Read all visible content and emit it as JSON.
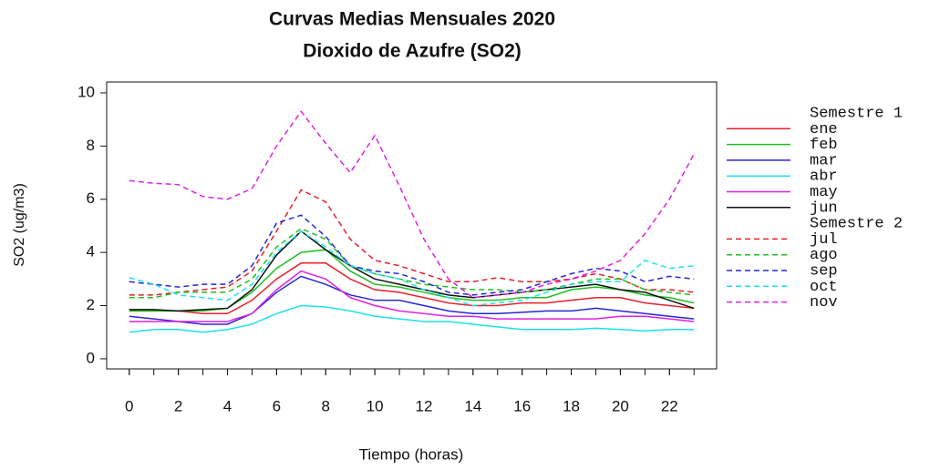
{
  "chart_data": {
    "type": "line",
    "title": "Curvas Medias Mensuales 2020",
    "subtitle": "Dioxido de Azufre (SO2)",
    "xlabel": "Tiempo (horas)",
    "ylabel": "SO2 (ug/m3)",
    "x": [
      0,
      1,
      2,
      3,
      4,
      5,
      6,
      7,
      8,
      9,
      10,
      11,
      12,
      13,
      14,
      15,
      16,
      17,
      18,
      19,
      20,
      21,
      22,
      23
    ],
    "xlim": [
      -0.92,
      23.92
    ],
    "xticks": [
      0,
      2,
      4,
      6,
      8,
      10,
      12,
      14,
      16,
      18,
      20,
      22
    ],
    "ylim": [
      -0.38,
      10.41
    ],
    "yticks": [
      0,
      2,
      4,
      6,
      8,
      10
    ],
    "groups": [
      {
        "title": "Semestre 1",
        "linestyle": "solid",
        "series": [
          {
            "name": "ene",
            "color": "#e8202a",
            "values": [
              1.8,
              1.8,
              1.8,
              1.7,
              1.7,
              2.2,
              3.0,
              3.6,
              3.6,
              3.0,
              2.6,
              2.5,
              2.3,
              2.1,
              2.0,
              2.0,
              2.1,
              2.1,
              2.2,
              2.3,
              2.3,
              2.1,
              2.0,
              1.9
            ]
          },
          {
            "name": "feb",
            "color": "#1fbf1f",
            "values": [
              1.8,
              1.8,
              1.8,
              1.8,
              1.9,
              2.5,
              3.4,
              4.0,
              4.1,
              3.3,
              2.8,
              2.7,
              2.5,
              2.3,
              2.2,
              2.2,
              2.3,
              2.3,
              2.6,
              2.7,
              2.6,
              2.4,
              2.3,
              2.1
            ]
          },
          {
            "name": "mar",
            "color": "#2626d6",
            "values": [
              1.6,
              1.5,
              1.4,
              1.3,
              1.3,
              1.7,
              2.5,
              3.1,
              2.8,
              2.4,
              2.2,
              2.2,
              2.0,
              1.8,
              1.7,
              1.7,
              1.75,
              1.8,
              1.8,
              1.9,
              1.8,
              1.7,
              1.6,
              1.5
            ]
          },
          {
            "name": "abr",
            "color": "#1ee0ea",
            "values": [
              1.0,
              1.1,
              1.1,
              1.0,
              1.1,
              1.3,
              1.7,
              2.0,
              1.95,
              1.8,
              1.6,
              1.5,
              1.4,
              1.4,
              1.3,
              1.2,
              1.1,
              1.1,
              1.1,
              1.15,
              1.1,
              1.05,
              1.1,
              1.1
            ]
          },
          {
            "name": "may",
            "color": "#e020e0",
            "values": [
              1.4,
              1.4,
              1.4,
              1.4,
              1.4,
              1.7,
              2.6,
              3.3,
              3.0,
              2.3,
              2.0,
              1.8,
              1.7,
              1.6,
              1.6,
              1.5,
              1.5,
              1.5,
              1.5,
              1.5,
              1.6,
              1.6,
              1.5,
              1.4
            ]
          },
          {
            "name": "jun",
            "color": "#111111",
            "values": [
              1.85,
              1.85,
              1.8,
              1.85,
              1.9,
              2.6,
              3.9,
              4.8,
              4.1,
              3.5,
              3.0,
              2.8,
              2.6,
              2.4,
              2.3,
              2.4,
              2.5,
              2.6,
              2.7,
              2.8,
              2.6,
              2.5,
              2.2,
              1.9
            ]
          }
        ]
      },
      {
        "title": "Semestre 2",
        "linestyle": "dashed",
        "series": [
          {
            "name": "jul",
            "color": "#e8202a",
            "values": [
              2.4,
              2.4,
              2.5,
              2.6,
              2.7,
              3.3,
              4.8,
              6.35,
              5.9,
              4.5,
              3.7,
              3.5,
              3.2,
              2.9,
              2.9,
              3.05,
              2.9,
              2.9,
              3.0,
              3.2,
              3.0,
              2.6,
              2.6,
              2.5
            ]
          },
          {
            "name": "ago",
            "color": "#1fbf1f",
            "values": [
              2.3,
              2.3,
              2.5,
              2.5,
              2.5,
              3.0,
              4.2,
              4.9,
              4.5,
              3.5,
              3.2,
              3.0,
              2.8,
              2.7,
              2.6,
              2.6,
              2.5,
              2.6,
              2.8,
              3.0,
              3.0,
              2.6,
              2.5,
              2.4
            ]
          },
          {
            "name": "sep",
            "color": "#2626d6",
            "values": [
              2.9,
              2.8,
              2.7,
              2.8,
              2.8,
              3.5,
              5.1,
              5.4,
              4.6,
              3.5,
              3.3,
              3.2,
              2.9,
              2.5,
              2.4,
              2.5,
              2.6,
              2.9,
              3.2,
              3.4,
              3.3,
              2.9,
              3.1,
              3.0
            ]
          },
          {
            "name": "oct",
            "color": "#1ee0ea",
            "values": [
              3.05,
              2.8,
              2.4,
              2.3,
              2.2,
              2.8,
              4.0,
              4.8,
              4.2,
              3.5,
              3.2,
              3.0,
              2.6,
              2.3,
              2.0,
              2.1,
              2.2,
              2.5,
              2.8,
              2.9,
              2.9,
              3.7,
              3.4,
              3.5
            ]
          },
          {
            "name": "nov",
            "color": "#e020e0",
            "values": [
              6.7,
              6.6,
              6.55,
              6.1,
              6.0,
              6.4,
              8.0,
              9.3,
              8.1,
              7.0,
              8.4,
              6.5,
              4.5,
              3.0,
              2.3,
              2.4,
              2.5,
              2.8,
              3.0,
              3.3,
              3.7,
              4.7,
              6.0,
              7.7
            ]
          }
        ]
      }
    ]
  }
}
